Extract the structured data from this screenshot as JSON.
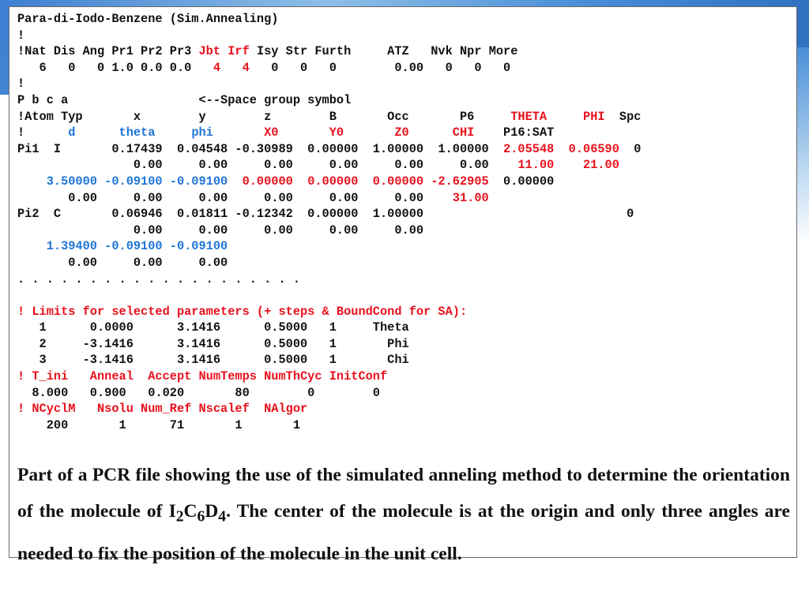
{
  "colors": {
    "red": "#e8111c",
    "blue": "#1f74d6",
    "text": "#111111",
    "panel_border": "#6a6a6a"
  },
  "code_lines": [
    [
      {
        "t": "Para-di-Iodo-Benzene (Sim.Annealing)",
        "c": "black"
      }
    ],
    [
      {
        "t": "!",
        "c": "black"
      }
    ],
    [
      {
        "t": "!Nat Dis Ang Pr1 Pr2 Pr3 ",
        "c": "black"
      },
      {
        "t": "Jbt Irf",
        "c": "red"
      },
      {
        "t": " Isy Str Furth     ATZ   Nvk Npr More",
        "c": "black"
      }
    ],
    [
      {
        "t": "   6   0   0 1.0 0.0 0.0   ",
        "c": "black"
      },
      {
        "t": "4   4",
        "c": "red"
      },
      {
        "t": "   0   0   0        0.00   0   0   0",
        "c": "black"
      }
    ],
    [
      {
        "t": "!",
        "c": "black"
      }
    ],
    [
      {
        "t": "P b c a                  <--Space group symbol",
        "c": "black"
      }
    ],
    [
      {
        "t": "!Atom Typ       x        y        z        B       Occ       P6     ",
        "c": "black"
      },
      {
        "t": "THETA",
        "c": "red"
      },
      {
        "t": "     ",
        "c": "black"
      },
      {
        "t": "PHI",
        "c": "red"
      },
      {
        "t": "  Spc",
        "c": "black"
      }
    ],
    [
      {
        "t": "!      ",
        "c": "black"
      },
      {
        "t": "d      theta     phi",
        "c": "blue"
      },
      {
        "t": "       ",
        "c": "black"
      },
      {
        "t": "X0       Y0       Z0      CHI",
        "c": "red"
      },
      {
        "t": "    P16:SAT",
        "c": "black"
      }
    ],
    [
      {
        "t": "Pi1  I       0.17439  0.04548 -0.30989  0.00000  1.00000  1.00000  ",
        "c": "black"
      },
      {
        "t": "2.05548  0.06590",
        "c": "red"
      },
      {
        "t": "  0",
        "c": "black"
      }
    ],
    [
      {
        "t": "                0.00     0.00     0.00     0.00     0.00     0.00    ",
        "c": "black"
      },
      {
        "t": "11.00    21.00",
        "c": "red"
      }
    ],
    [
      {
        "t": "    ",
        "c": "black"
      },
      {
        "t": "3.50000 -0.09100 -0.09100",
        "c": "blue"
      },
      {
        "t": "  ",
        "c": "black"
      },
      {
        "t": "0.00000  0.00000  0.00000 -2.62905",
        "c": "red"
      },
      {
        "t": "  0.00000",
        "c": "black"
      }
    ],
    [
      {
        "t": "       0.00     0.00     0.00     0.00     0.00     0.00    ",
        "c": "black"
      },
      {
        "t": "31.00",
        "c": "red"
      }
    ],
    [
      {
        "t": "Pi2  C       0.06946  0.01811 -0.12342  0.00000  1.00000                            0",
        "c": "black"
      }
    ],
    [
      {
        "t": "                0.00     0.00     0.00     0.00     0.00",
        "c": "black"
      }
    ],
    [
      {
        "t": "    ",
        "c": "black"
      },
      {
        "t": "1.39400 -0.09100 -0.09100",
        "c": "blue"
      }
    ],
    [
      {
        "t": "       0.00     0.00     0.00",
        "c": "black"
      }
    ],
    [
      {
        "t": ". . . . . . . . . . . . . . . . . . . .",
        "c": "black"
      }
    ],
    [
      {
        "t": "",
        "c": "black"
      }
    ],
    [
      {
        "t": "! Limits for selected parameters (+ steps & BoundCond for SA):",
        "c": "red"
      }
    ],
    [
      {
        "t": "   1      0.0000      3.1416      0.5000   1     Theta",
        "c": "black"
      }
    ],
    [
      {
        "t": "   2     -3.1416      3.1416      0.5000   1       Phi",
        "c": "black"
      }
    ],
    [
      {
        "t": "   3     -3.1416      3.1416      0.5000   1       Chi",
        "c": "black"
      }
    ],
    [
      {
        "t": "! T_ini   Anneal  Accept NumTemps NumThCyc InitConf",
        "c": "red"
      }
    ],
    [
      {
        "t": "  8.000   0.900   0.020       80        0        0",
        "c": "black"
      }
    ],
    [
      {
        "t": "! NCyclM   Nsolu Num_Ref Nscalef  NAlgor",
        "c": "red"
      }
    ],
    [
      {
        "t": "    200       1      71       1       1",
        "c": "black"
      }
    ]
  ],
  "caption": {
    "part1": "Part of a PCR file showing the use of the simulated anneling method to determine the orientation of the molecule of I",
    "sub1": "2",
    "part2": "C",
    "sub2": "6",
    "part3": "D",
    "sub3": "4",
    "part4": ". The center of the molecule is at the origin and only three angles are needed to fix the position of the molecule in the unit cell."
  }
}
